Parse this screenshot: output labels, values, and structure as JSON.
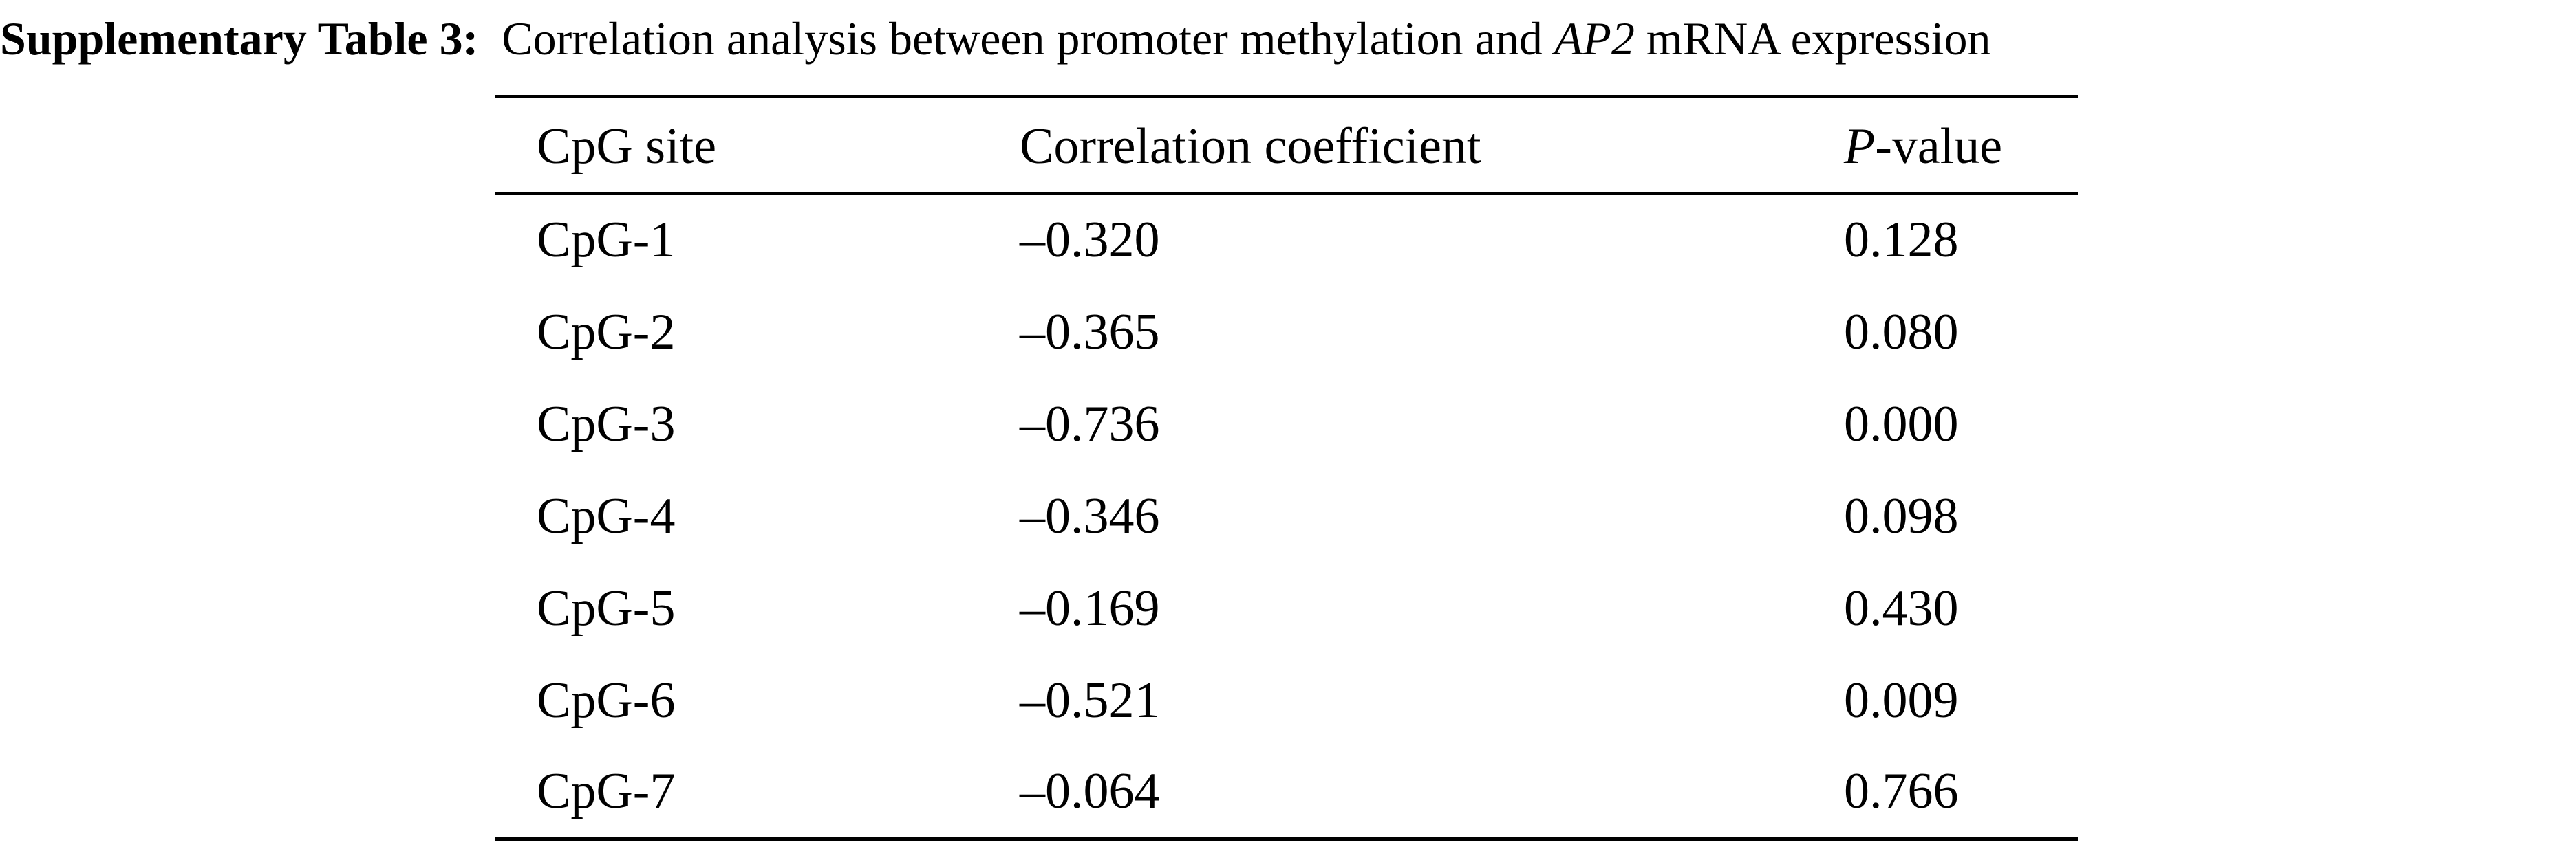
{
  "caption": {
    "label": "Supplementary Table 3:",
    "text_before": "Correlation analysis between promoter methylation and",
    "gene": "AP2",
    "text_after": "mRNA expression"
  },
  "table": {
    "headers": {
      "site": "CpG site",
      "correlation": "Correlation coefficient",
      "p_italic": "P",
      "p_rest": "-value"
    },
    "rows": [
      {
        "site": "CpG-1",
        "correlation": "–0.320",
        "p": "0.128"
      },
      {
        "site": "CpG-2",
        "correlation": "–0.365",
        "p": "0.080"
      },
      {
        "site": "CpG-3",
        "correlation": "–0.736",
        "p": "0.000"
      },
      {
        "site": "CpG-4",
        "correlation": "–0.346",
        "p": "0.098"
      },
      {
        "site": "CpG-5",
        "correlation": "–0.169",
        "p": "0.430"
      },
      {
        "site": "CpG-6",
        "correlation": "–0.521",
        "p": "0.009"
      },
      {
        "site": "CpG-7",
        "correlation": "–0.064",
        "p": "0.766"
      }
    ]
  }
}
